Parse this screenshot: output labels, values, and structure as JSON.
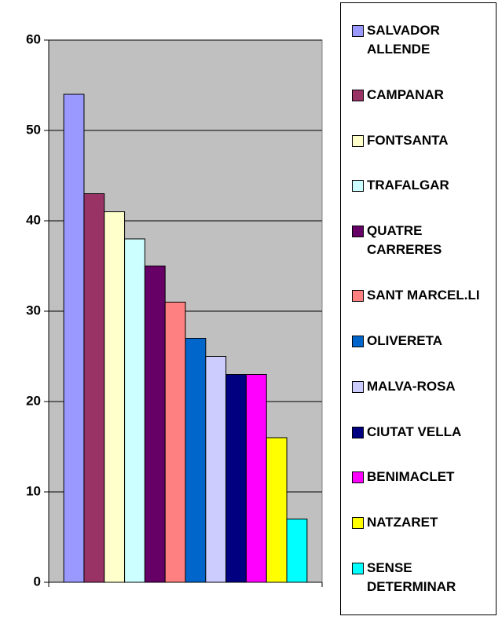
{
  "chart_data": {
    "type": "bar",
    "categories": [
      null
    ],
    "series": [
      {
        "name": "SALVADOR ALLENDE",
        "color": "#9999ff",
        "values": [
          54
        ]
      },
      {
        "name": "CAMPANAR",
        "color": "#993366",
        "values": [
          43
        ]
      },
      {
        "name": "FONTSANTA",
        "color": "#ffffcc",
        "values": [
          41
        ]
      },
      {
        "name": "TRAFALGAR",
        "color": "#ccffff",
        "values": [
          38
        ]
      },
      {
        "name": "QUATRE CARRERES",
        "color": "#660066",
        "values": [
          35
        ]
      },
      {
        "name": "SANT MARCEL.LI",
        "color": "#ff8080",
        "values": [
          31
        ]
      },
      {
        "name": "OLIVERETA",
        "color": "#0066cc",
        "values": [
          27
        ]
      },
      {
        "name": "MALVA-ROSA",
        "color": "#ccccff",
        "values": [
          25
        ]
      },
      {
        "name": "CIUTAT VELLA",
        "color": "#000080",
        "values": [
          23
        ]
      },
      {
        "name": "BENIMACLET",
        "color": "#ff00ff",
        "values": [
          23
        ]
      },
      {
        "name": "NATZARET",
        "color": "#ffff00",
        "values": [
          16
        ]
      },
      {
        "name": "SENSE DETERMINAR",
        "color": "#00ffff",
        "values": [
          7
        ]
      }
    ],
    "ylim": [
      0,
      60
    ],
    "yticks": [
      0,
      10,
      20,
      30,
      40,
      50,
      60
    ],
    "grid": true,
    "plot_background": "#c0c0c0",
    "legend": "right"
  }
}
